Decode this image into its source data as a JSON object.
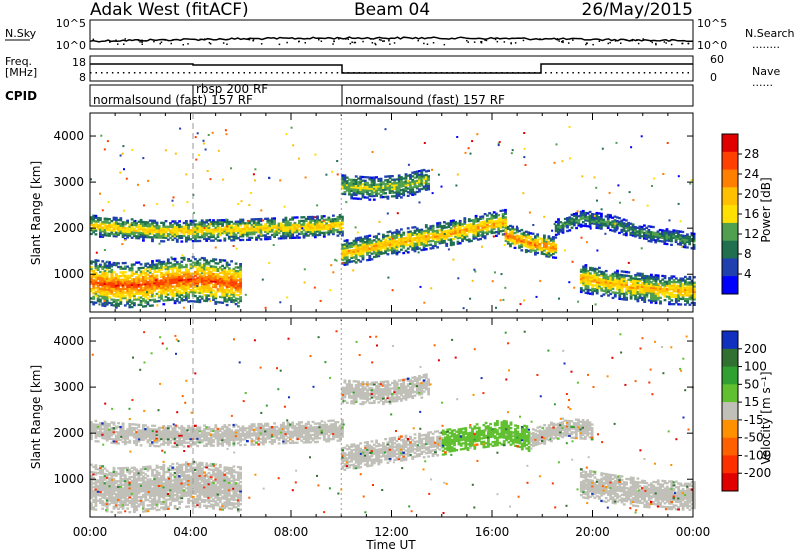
{
  "header": {
    "station": "Adak West (fitACF)",
    "beam": "Beam 04",
    "date": "26/May/2015"
  },
  "panels": {
    "nsky": {
      "left_label": "N.Sky",
      "left_ticks": [
        "10^5",
        "10^0"
      ],
      "right_ticks": [
        "10^5",
        "10^0"
      ],
      "right_label": "N.Search",
      "right_legend": "........"
    },
    "freq": {
      "left_label_1": "Freq.",
      "left_label_2": "[MHz]",
      "left_ticks": [
        "18",
        "8"
      ],
      "right_ticks": [
        "60",
        "0"
      ],
      "right_label": "Nave",
      "right_legend": "......"
    },
    "cpid": {
      "label": "CPID",
      "segments": [
        {
          "start": 0,
          "end": 4.1,
          "name": "normalsound (fast) 157 RF"
        },
        {
          "start": 4.1,
          "end": 10.0,
          "name": "rbsp 200 RF"
        },
        {
          "start": 10.0,
          "end": 24.0,
          "name": "normalsound (fast) 157 RF"
        }
      ]
    },
    "power": {
      "ylabel": "Slant Range [km]",
      "colorbar_label": "Power [dB]",
      "colorbar_ticks": [
        "28",
        "24",
        "20",
        "16",
        "12",
        "8",
        "4"
      ],
      "colorbar_colors": [
        "#e00000",
        "#ff4000",
        "#ff8000",
        "#ffc000",
        "#ffe000",
        "#50a050",
        "#207050",
        "#2040b0",
        "#0000ff"
      ]
    },
    "velocity": {
      "ylabel": "Slant Range [km]",
      "colorbar_label": "Velocity [m s⁻¹]",
      "colorbar_ticks": [
        "200",
        "100",
        "50",
        "15",
        "-15",
        "-50",
        "-100",
        "-200"
      ],
      "colorbar_colors": [
        "#1030c0",
        "#307030",
        "#30a030",
        "#60c030",
        "#c0c0b8",
        "#ff9000",
        "#ff6000",
        "#ff3000",
        "#e00000"
      ]
    },
    "time_axis": {
      "label": "Time UT",
      "ticks": [
        "00:00",
        "04:00",
        "08:00",
        "12:00",
        "16:00",
        "20:00",
        "00:00"
      ]
    },
    "range_ticks": [
      "4000",
      "3000",
      "2000",
      "1000"
    ]
  },
  "chart_data": [
    {
      "type": "heatmap",
      "title": "Power [dB]",
      "xlabel": "Time UT",
      "ylabel": "Slant Range [km]",
      "xlim": [
        0,
        24
      ],
      "ylim": [
        180,
        4500
      ],
      "color_range": [
        0,
        30
      ],
      "bands": [
        {
          "start": 0.0,
          "end": 10.0,
          "center": [
            2050,
            1990,
            1940,
            1920,
            1940,
            1950,
            1970,
            2000,
            2020,
            2060
          ],
          "width": 230,
          "peak": 18
        },
        {
          "start": 10.0,
          "end": 16.5,
          "center": [
            1440,
            1560,
            1680,
            1780,
            1880,
            2000,
            2120
          ],
          "width": 260,
          "peak": 20
        },
        {
          "start": 16.5,
          "end": 18.5,
          "center": [
            1850,
            1650,
            1560
          ],
          "width": 220,
          "peak": 24
        },
        {
          "start": 18.5,
          "end": 24.0,
          "center": [
            2000,
            2200,
            2100,
            1900,
            1800,
            1700
          ],
          "width": 160,
          "peak": 10
        },
        {
          "start": 0.0,
          "end": 6.0,
          "center": [
            820,
            740,
            760,
            820,
            880,
            820,
            760
          ],
          "width": 480,
          "peak": 26
        },
        {
          "start": 10.0,
          "end": 13.5,
          "center": [
            2900,
            2850,
            2900,
            3050
          ],
          "width": 250,
          "peak": 14
        },
        {
          "start": 19.5,
          "end": 24.0,
          "center": [
            900,
            780,
            700,
            640,
            620
          ],
          "width": 300,
          "peak": 20
        }
      ]
    },
    {
      "type": "heatmap",
      "title": "Velocity [m s⁻¹]",
      "xlabel": "Time UT",
      "ylabel": "Slant Range [km]",
      "xlim": [
        0,
        24
      ],
      "ylim": [
        180,
        4500
      ],
      "color_range": [
        -200,
        200
      ],
      "bands": [
        {
          "start": 0.0,
          "end": 10.0,
          "center": [
            2050,
            1990,
            1940,
            1920,
            1940,
            1950,
            1970,
            2000,
            2020,
            2060
          ],
          "width": 230,
          "vel": 0
        },
        {
          "start": 10.0,
          "end": 14.0,
          "center": [
            1440,
            1560,
            1680,
            1780
          ],
          "width": 260,
          "vel": 0
        },
        {
          "start": 14.0,
          "end": 17.5,
          "center": [
            1780,
            1900,
            2000,
            1850
          ],
          "width": 260,
          "vel": 40
        },
        {
          "start": 17.5,
          "end": 20.0,
          "center": [
            1850,
            2100,
            2050
          ],
          "width": 200,
          "vel": 0
        },
        {
          "start": 0.0,
          "end": 6.0,
          "center": [
            820,
            740,
            760,
            820,
            880,
            820,
            760
          ],
          "width": 480,
          "vel": 0
        },
        {
          "start": 10.0,
          "end": 13.5,
          "center": [
            2900,
            2850,
            2900,
            3050
          ],
          "width": 250,
          "vel": 0
        },
        {
          "start": 19.5,
          "end": 24.0,
          "center": [
            900,
            780,
            700,
            640,
            620
          ],
          "width": 300,
          "vel": 0
        }
      ]
    }
  ]
}
